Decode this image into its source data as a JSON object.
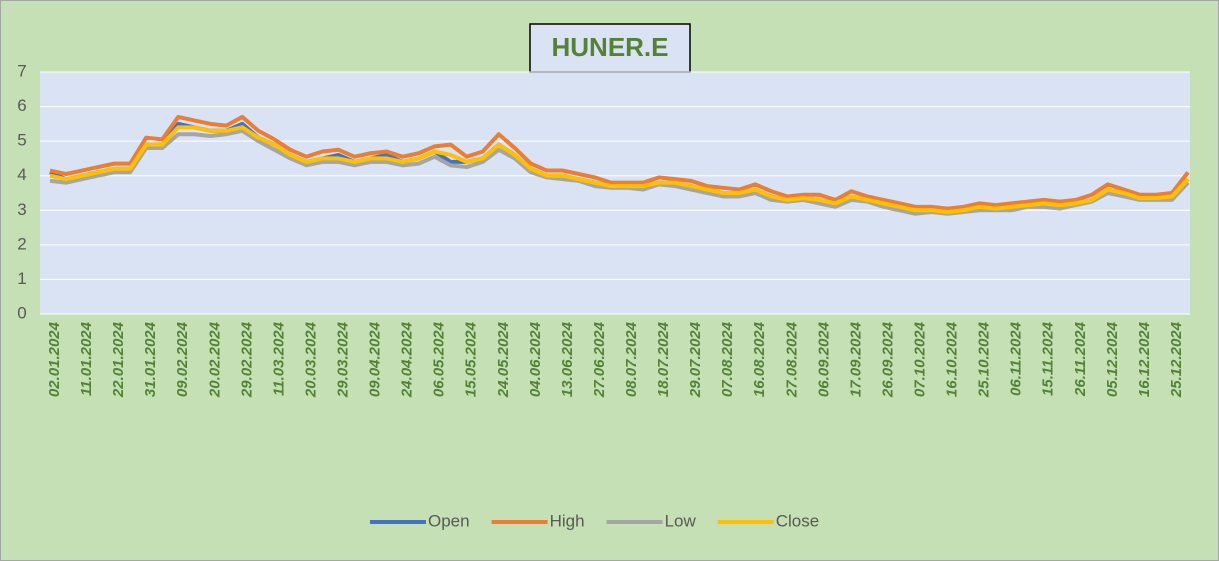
{
  "chart_data": {
    "type": "line",
    "title": "HUNER.E",
    "categories": [
      "02.01.2024",
      null,
      "11.01.2024",
      null,
      "22.01.2024",
      null,
      "31.01.2024",
      null,
      "09.02.2024",
      null,
      "20.02.2024",
      null,
      "29.02.2024",
      null,
      "11.03.2024",
      null,
      "20.03.2024",
      null,
      "29.03.2024",
      null,
      "09.04.2024",
      null,
      "24.04.2024",
      null,
      "06.05.2024",
      null,
      "15.05.2024",
      null,
      "24.05.2024",
      null,
      "04.06.2024",
      null,
      "13.06.2024",
      null,
      "27.06.2024",
      null,
      "08.07.2024",
      null,
      "18.07.2024",
      null,
      "29.07.2024",
      null,
      "07.08.2024",
      null,
      "16.08.2024",
      null,
      "27.08.2024",
      null,
      "06.09.2024",
      null,
      "17.09.2024",
      null,
      "26.09.2024",
      null,
      "07.10.2024",
      null,
      "16.10.2024",
      null,
      "25.10.2024",
      null,
      "06.11.2024",
      null,
      "15.11.2024",
      null,
      "26.11.2024",
      null,
      "05.12.2024",
      null,
      "16.12.2024",
      null,
      "25.12.2024",
      null
    ],
    "series": [
      {
        "name": "Open",
        "color": "#4472c4",
        "values": [
          4.1,
          3.9,
          4.0,
          4.1,
          4.2,
          4.2,
          4.9,
          4.9,
          5.5,
          5.4,
          5.3,
          5.3,
          5.5,
          5.1,
          4.9,
          4.6,
          4.4,
          4.5,
          4.6,
          4.4,
          4.5,
          4.6,
          4.4,
          4.5,
          4.7,
          4.4,
          4.4,
          4.5,
          4.9,
          4.6,
          4.2,
          4.0,
          4.0,
          3.9,
          3.8,
          3.7,
          3.7,
          3.7,
          3.8,
          3.8,
          3.7,
          3.6,
          3.5,
          3.5,
          3.6,
          3.4,
          3.3,
          3.35,
          3.3,
          3.2,
          3.4,
          3.3,
          3.2,
          3.1,
          3.0,
          3.0,
          2.95,
          3.0,
          3.1,
          3.05,
          3.1,
          3.15,
          3.2,
          3.15,
          3.2,
          3.3,
          3.6,
          3.5,
          3.35,
          3.35,
          3.4,
          3.9
        ]
      },
      {
        "name": "High",
        "color": "#ed7d31",
        "values": [
          4.15,
          4.05,
          4.15,
          4.25,
          4.35,
          4.35,
          5.1,
          5.05,
          5.7,
          5.6,
          5.5,
          5.45,
          5.7,
          5.3,
          5.05,
          4.75,
          4.55,
          4.7,
          4.75,
          4.55,
          4.65,
          4.7,
          4.55,
          4.65,
          4.85,
          4.9,
          4.55,
          4.7,
          5.2,
          4.8,
          4.35,
          4.15,
          4.15,
          4.05,
          3.95,
          3.8,
          3.8,
          3.8,
          3.95,
          3.9,
          3.85,
          3.7,
          3.65,
          3.6,
          3.75,
          3.55,
          3.4,
          3.45,
          3.45,
          3.3,
          3.55,
          3.4,
          3.3,
          3.2,
          3.1,
          3.1,
          3.05,
          3.1,
          3.2,
          3.15,
          3.2,
          3.25,
          3.3,
          3.25,
          3.3,
          3.45,
          3.75,
          3.6,
          3.45,
          3.45,
          3.5,
          4.1
        ]
      },
      {
        "name": "Low",
        "color": "#a5a5a5",
        "values": [
          3.85,
          3.8,
          3.9,
          4.0,
          4.1,
          4.1,
          4.8,
          4.8,
          5.2,
          5.2,
          5.15,
          5.2,
          5.3,
          5.0,
          4.75,
          4.5,
          4.3,
          4.4,
          4.4,
          4.3,
          4.4,
          4.4,
          4.3,
          4.35,
          4.55,
          4.3,
          4.25,
          4.4,
          4.75,
          4.5,
          4.1,
          3.95,
          3.9,
          3.85,
          3.7,
          3.65,
          3.65,
          3.6,
          3.75,
          3.7,
          3.6,
          3.5,
          3.4,
          3.4,
          3.5,
          3.3,
          3.25,
          3.3,
          3.2,
          3.1,
          3.3,
          3.25,
          3.1,
          3.0,
          2.9,
          2.95,
          2.9,
          2.95,
          3.0,
          3.0,
          3.0,
          3.1,
          3.1,
          3.05,
          3.15,
          3.25,
          3.5,
          3.4,
          3.3,
          3.3,
          3.3,
          3.8
        ]
      },
      {
        "name": "Close",
        "color": "#ffc000",
        "values": [
          4.0,
          3.9,
          4.0,
          4.1,
          4.2,
          4.2,
          4.9,
          4.9,
          5.4,
          5.4,
          5.3,
          5.3,
          5.4,
          5.1,
          4.9,
          4.6,
          4.4,
          4.5,
          4.5,
          4.4,
          4.5,
          4.5,
          4.4,
          4.5,
          4.7,
          4.6,
          4.4,
          4.5,
          4.9,
          4.6,
          4.2,
          4.0,
          4.0,
          3.9,
          3.8,
          3.7,
          3.7,
          3.7,
          3.8,
          3.8,
          3.7,
          3.6,
          3.5,
          3.5,
          3.6,
          3.4,
          3.3,
          3.35,
          3.3,
          3.2,
          3.4,
          3.3,
          3.2,
          3.1,
          3.0,
          3.0,
          2.95,
          3.0,
          3.1,
          3.05,
          3.1,
          3.15,
          3.2,
          3.15,
          3.2,
          3.3,
          3.6,
          3.5,
          3.35,
          3.35,
          3.4,
          3.9
        ]
      }
    ],
    "ylim": [
      0,
      7
    ],
    "yticks": [
      0,
      1,
      2,
      3,
      4,
      5,
      6,
      7
    ],
    "grid": true,
    "legend": "bottom"
  }
}
